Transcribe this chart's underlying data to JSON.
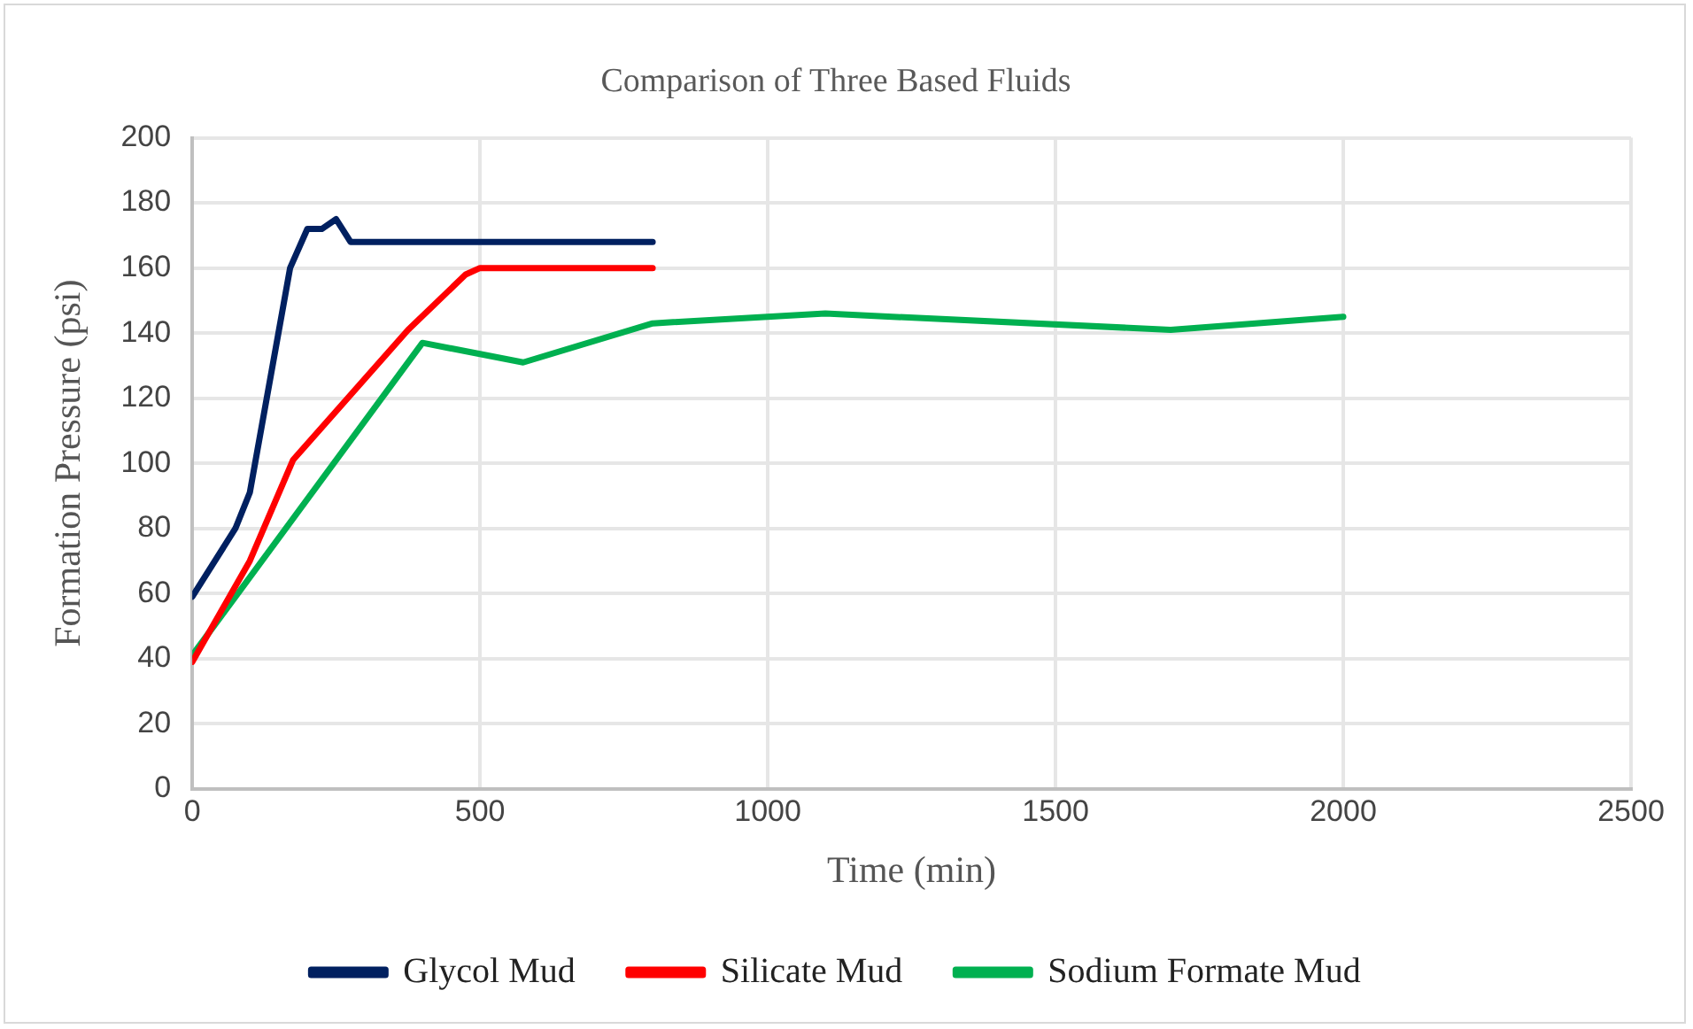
{
  "chart_data": {
    "type": "line",
    "title": "Comparison of Three Based Fluids",
    "xlabel": "Time (min)",
    "ylabel": "Formation Pressure (psi)",
    "xlim": [
      0,
      2500
    ],
    "xticks": [
      0,
      500,
      1000,
      1500,
      2000,
      2500
    ],
    "ylim": [
      0,
      200
    ],
    "yticks": [
      0,
      20,
      40,
      60,
      80,
      100,
      120,
      140,
      160,
      180,
      200
    ],
    "grid": true,
    "legend": "bottom",
    "marker": "none",
    "line_style": "solid",
    "series": [
      {
        "name": "Glycol Mud",
        "color": "#002060",
        "x": [
          0,
          75,
          100,
          170,
          200,
          225,
          250,
          275,
          800
        ],
        "values": [
          59,
          80,
          91,
          160,
          172,
          172,
          175,
          168,
          168
        ]
      },
      {
        "name": "Silicate Mud",
        "color": "#ff0000",
        "x": [
          0,
          100,
          175,
          375,
          475,
          500,
          800
        ],
        "values": [
          39,
          70,
          101,
          141,
          158,
          160,
          160
        ]
      },
      {
        "name": "Sodium Formate Mud",
        "color": "#00b050",
        "x": [
          0,
          400,
          575,
          800,
          1100,
          1700,
          2000
        ],
        "values": [
          41,
          137,
          131,
          143,
          146,
          141,
          145
        ]
      }
    ]
  }
}
